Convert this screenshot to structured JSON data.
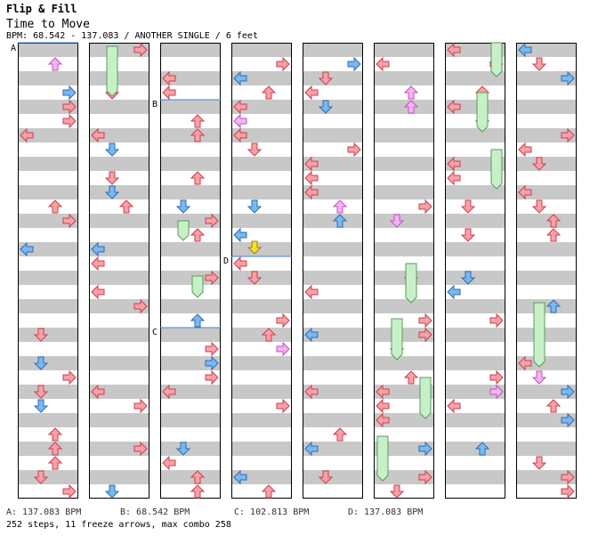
{
  "header": {
    "title": "Flip & Fill",
    "song": "Time to Move",
    "info": "BPM: 68.542 - 137.083 / ANOTHER SINGLE / 6 feet"
  },
  "markers": {
    "a": "A",
    "b": "B",
    "c": "C",
    "d": "D"
  },
  "legend": {
    "a": "A: 137.083 BPM",
    "b": "B: 68.542 BPM",
    "c": "C: 102.813 BPM",
    "d": "D: 137.083 BPM"
  },
  "summary": "252 steps, 11 freeze arrows, max combo 258",
  "colors": {
    "red_arrow": "#f9a0a8",
    "red_edge": "#c8404c",
    "blue_arrow": "#7ab8f0",
    "blue_edge": "#2a6cb8",
    "pink_arrow": "#f4b4f0",
    "yellow_arrow": "#f4e030",
    "freeze": "#c8f0c8",
    "freeze_edge": "#5a9a5a",
    "stripe_gray": "#c8c8c8",
    "bpm_line": "#4080e0"
  },
  "arrow_icons": [
    "left-arrow-icon",
    "down-arrow-icon",
    "up-arrow-icon",
    "right-arrow-icon"
  ]
}
